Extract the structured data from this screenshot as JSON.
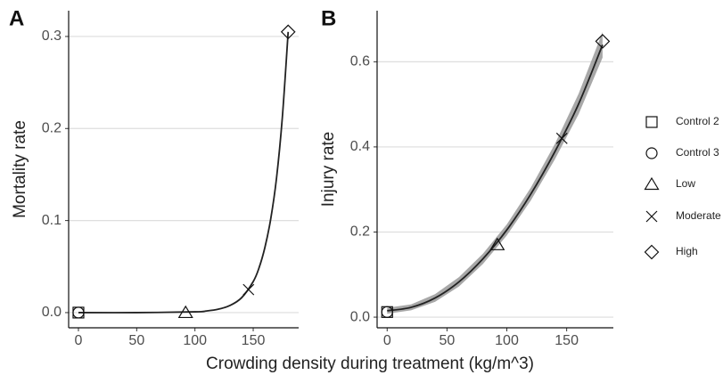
{
  "chart_data": {
    "type": "scatter",
    "xlabel": "Crowding density during treatment (kg/m^3)",
    "xlim": [
      -8.4,
      189
    ],
    "xticks": [
      0,
      50,
      100,
      150
    ],
    "grid": true,
    "series": [
      {
        "name": "Control 2",
        "marker": "square",
        "x": 0
      },
      {
        "name": "Control 3",
        "marker": "circle",
        "x": 0
      },
      {
        "name": "Low",
        "marker": "triangle",
        "x": 92
      },
      {
        "name": "Moderate",
        "marker": "cross",
        "x": 146
      },
      {
        "name": "High",
        "marker": "diamond",
        "x": 180
      }
    ],
    "line_color": "#222222",
    "band_color": "#999999",
    "panels": [
      {
        "label": "A",
        "ylabel": "Mortality rate",
        "ylim": [
          -0.0165,
          0.328
        ],
        "yticks": [
          {
            "value": 0,
            "label": "0.0"
          },
          0.1,
          0.2,
          0.3
        ],
        "values": [
          0,
          0,
          0,
          0.025,
          0.305
        ],
        "fit": {
          "x": [
            0,
            50,
            100,
            110,
            120,
            130,
            140,
            150,
            155,
            160,
            165,
            170,
            175,
            180
          ],
          "values": [
            0,
            0,
            0.00085,
            0.0018,
            0.0037,
            0.0077,
            0.0161,
            0.0337,
            0.0486,
            0.0706,
            0.1015,
            0.146,
            0.212,
            0.305
          ]
        }
      },
      {
        "label": "B",
        "ylabel": "Injury rate",
        "ylim": [
          -0.025,
          0.72
        ],
        "yticks": [
          {
            "value": 0,
            "label": "0.0"
          },
          0.2,
          0.4,
          0.6
        ],
        "values": [
          0.012,
          0.012,
          0.17,
          0.42,
          0.648
        ],
        "fit": {
          "x": [
            0,
            20,
            40,
            60,
            80,
            100,
            120,
            140,
            160,
            180
          ],
          "values": [
            0.015,
            0.023,
            0.045,
            0.083,
            0.137,
            0.205,
            0.289,
            0.388,
            0.501,
            0.64
          ],
          "lower": [
            0.008,
            0.016,
            0.036,
            0.072,
            0.125,
            0.192,
            0.274,
            0.37,
            0.477,
            0.61
          ],
          "upper": [
            0.022,
            0.03,
            0.054,
            0.094,
            0.149,
            0.218,
            0.304,
            0.406,
            0.525,
            0.67
          ]
        }
      }
    ]
  }
}
